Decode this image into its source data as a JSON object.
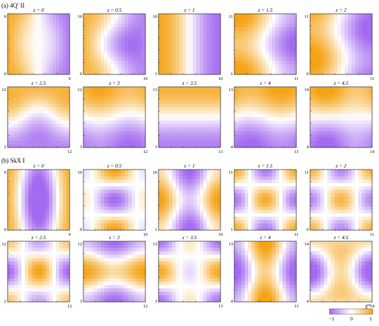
{
  "section_a_label": "(a) 4Q′ II",
  "section_b_label": "(b) SkX I",
  "panel_titles": [
    "z = 0",
    "z = 0.5",
    "z = 1",
    "z = 1.5",
    "z = 2",
    "z = 2.5",
    "z = 3",
    "z = 3.5",
    "z = 4",
    "z = 4.5"
  ],
  "axis_ranges": [
    [
      "0",
      "9"
    ],
    [
      "0",
      "10"
    ],
    [
      "1",
      "10"
    ],
    [
      "1",
      "11"
    ],
    [
      "0",
      "11"
    ],
    [
      "2",
      "12"
    ],
    [
      "3",
      "12"
    ],
    [
      "3",
      "13"
    ],
    [
      "4",
      "13"
    ],
    [
      "4",
      "14"
    ]
  ],
  "colorbar": {
    "label": "χᵉᵉ",
    "ticks": [
      "−1",
      "0",
      "1"
    ],
    "colors": {
      "negative": "#a36af0",
      "zero": "#ffffff",
      "positive": "#f4a316"
    }
  }
}
